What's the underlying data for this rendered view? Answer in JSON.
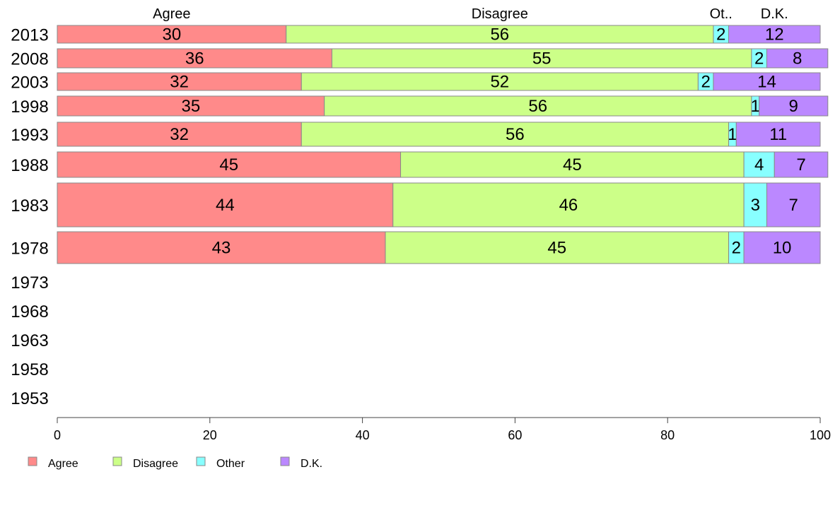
{
  "chart_data": {
    "type": "bar",
    "orientation": "horizontal",
    "stacked": true,
    "column_headers": [
      "Agree",
      "Disagree",
      "Ot..",
      "D.K."
    ],
    "categories": [
      "2013",
      "2008",
      "2003",
      "1998",
      "1993",
      "1988",
      "1983",
      "1978",
      "1973",
      "1968",
      "1963",
      "1958",
      "1953"
    ],
    "series": [
      {
        "name": "Agree",
        "color": "#ff8a8a",
        "values": [
          30,
          36,
          32,
          35,
          32,
          45,
          44,
          43,
          null,
          null,
          null,
          null,
          null
        ]
      },
      {
        "name": "Disagree",
        "color": "#ccff88",
        "values": [
          56,
          55,
          52,
          56,
          56,
          45,
          46,
          45,
          null,
          null,
          null,
          null,
          null
        ]
      },
      {
        "name": "Other",
        "color": "#88ffff",
        "values": [
          2,
          2,
          2,
          1,
          1,
          4,
          3,
          2,
          null,
          null,
          null,
          null,
          null
        ]
      },
      {
        "name": "D.K.",
        "color": "#bb88ff",
        "values": [
          12,
          8,
          14,
          9,
          11,
          7,
          7,
          10,
          null,
          null,
          null,
          null,
          null
        ]
      }
    ],
    "xlim": [
      0,
      100
    ],
    "xticks": [
      "0",
      "20",
      "40",
      "60",
      "80",
      "100"
    ],
    "grid": false,
    "legend_position": "bottom-left",
    "legend": [
      "Agree",
      "Disagree",
      "Other",
      "D.K."
    ]
  }
}
